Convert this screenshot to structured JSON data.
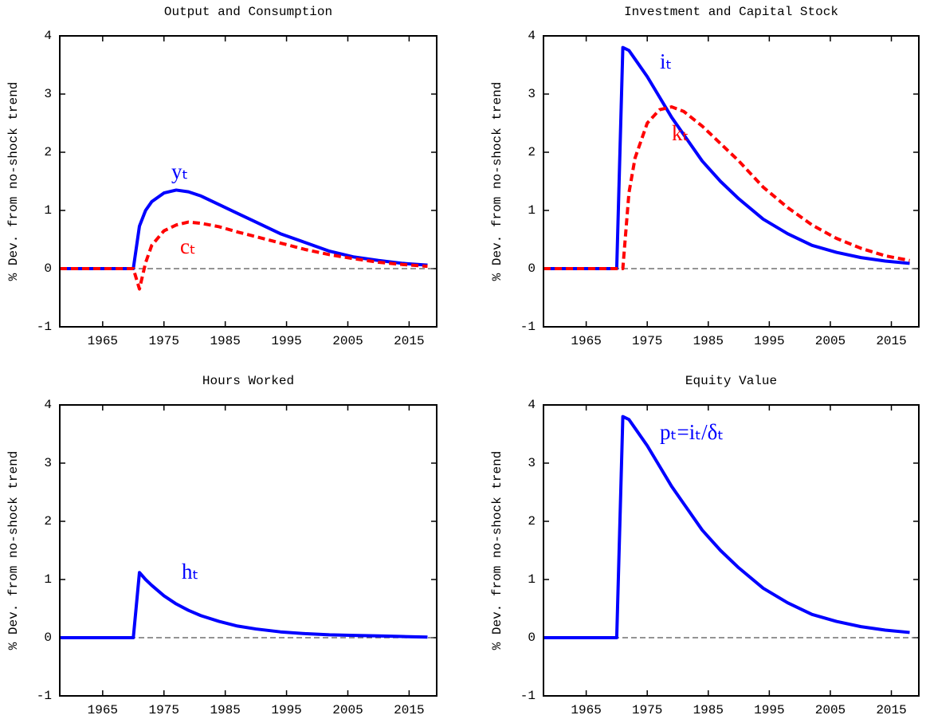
{
  "chart_data": [
    {
      "type": "line",
      "title": "Output and Consumption",
      "ylabel": "% Dev. from no-shock trend",
      "x": [
        1958,
        1970,
        1971,
        1972,
        1973,
        1975,
        1977,
        1979,
        1981,
        1984,
        1987,
        1990,
        1994,
        1998,
        2002,
        2006,
        2010,
        2014,
        2018
      ],
      "series": [
        {
          "name": "yₜ",
          "color": "#0000ff",
          "dash": false,
          "values": [
            0,
            0,
            0.73,
            1.0,
            1.15,
            1.3,
            1.35,
            1.32,
            1.25,
            1.1,
            0.95,
            0.8,
            0.6,
            0.45,
            0.3,
            0.2,
            0.14,
            0.09,
            0.06
          ]
        },
        {
          "name": "cₜ",
          "color": "#ff0000",
          "dash": true,
          "values": [
            0,
            0,
            -0.35,
            0.1,
            0.4,
            0.65,
            0.75,
            0.8,
            0.78,
            0.72,
            0.63,
            0.55,
            0.44,
            0.33,
            0.24,
            0.17,
            0.11,
            0.07,
            0.04
          ]
        }
      ],
      "xlim": [
        1958,
        2019.5
      ],
      "xticks": [
        1965,
        1975,
        1985,
        1995,
        2005,
        2015
      ],
      "ylim": [
        -1,
        4
      ],
      "yticks": [
        -1,
        0,
        1,
        2,
        3,
        4
      ],
      "hline": 0
    },
    {
      "type": "line",
      "title": "Investment and Capital Stock",
      "ylabel": "% Dev. from no-shock trend",
      "x": [
        1958,
        1970,
        1971,
        1972,
        1973,
        1975,
        1977,
        1979,
        1981,
        1984,
        1987,
        1990,
        1994,
        1998,
        2002,
        2006,
        2010,
        2014,
        2018
      ],
      "series": [
        {
          "name": "iₜ",
          "color": "#0000ff",
          "dash": false,
          "values": [
            0,
            0,
            3.8,
            3.75,
            3.6,
            3.3,
            2.95,
            2.6,
            2.3,
            1.85,
            1.5,
            1.2,
            0.85,
            0.6,
            0.4,
            0.28,
            0.19,
            0.13,
            0.09
          ]
        },
        {
          "name": "kₜ",
          "color": "#ff0000",
          "dash": true,
          "values": [
            0,
            0,
            0,
            1.3,
            1.9,
            2.5,
            2.73,
            2.78,
            2.7,
            2.45,
            2.15,
            1.85,
            1.4,
            1.05,
            0.75,
            0.52,
            0.35,
            0.22,
            0.14
          ]
        }
      ],
      "xlim": [
        1958,
        2019.5
      ],
      "xticks": [
        1965,
        1975,
        1985,
        1995,
        2005,
        2015
      ],
      "ylim": [
        -1,
        4
      ],
      "yticks": [
        -1,
        0,
        1,
        2,
        3,
        4
      ],
      "hline": 0
    },
    {
      "type": "line",
      "title": "Hours Worked",
      "ylabel": "% Dev. from no-shock trend",
      "x": [
        1958,
        1970,
        1971,
        1972,
        1973,
        1975,
        1977,
        1979,
        1981,
        1984,
        1987,
        1990,
        1994,
        1998,
        2002,
        2006,
        2010,
        2014,
        2018
      ],
      "series": [
        {
          "name": "hₜ",
          "color": "#0000ff",
          "dash": false,
          "values": [
            0,
            0,
            1.12,
            1.0,
            0.9,
            0.72,
            0.58,
            0.47,
            0.38,
            0.28,
            0.2,
            0.15,
            0.1,
            0.07,
            0.05,
            0.04,
            0.03,
            0.02,
            0.01
          ]
        }
      ],
      "xlim": [
        1958,
        2019.5
      ],
      "xticks": [
        1965,
        1975,
        1985,
        1995,
        2005,
        2015
      ],
      "ylim": [
        -1,
        4
      ],
      "yticks": [
        -1,
        0,
        1,
        2,
        3,
        4
      ],
      "hline": 0
    },
    {
      "type": "line",
      "title": "Equity Value",
      "ylabel": "% Dev. from no-shock trend",
      "x": [
        1958,
        1970,
        1971,
        1972,
        1973,
        1975,
        1977,
        1979,
        1981,
        1984,
        1987,
        1990,
        1994,
        1998,
        2002,
        2006,
        2010,
        2014,
        2018
      ],
      "series": [
        {
          "name": "pₜ=iₜ/δₜ",
          "color": "#0000ff",
          "dash": false,
          "values": [
            0,
            0,
            3.8,
            3.75,
            3.6,
            3.3,
            2.95,
            2.6,
            2.3,
            1.85,
            1.5,
            1.2,
            0.85,
            0.6,
            0.4,
            0.28,
            0.19,
            0.13,
            0.09
          ]
        }
      ],
      "xlim": [
        1958,
        2019.5
      ],
      "xticks": [
        1965,
        1975,
        1985,
        1995,
        2005,
        2015
      ],
      "ylim": [
        -1,
        4
      ],
      "yticks": [
        -1,
        0,
        1,
        2,
        3,
        4
      ],
      "hline": 0
    }
  ]
}
